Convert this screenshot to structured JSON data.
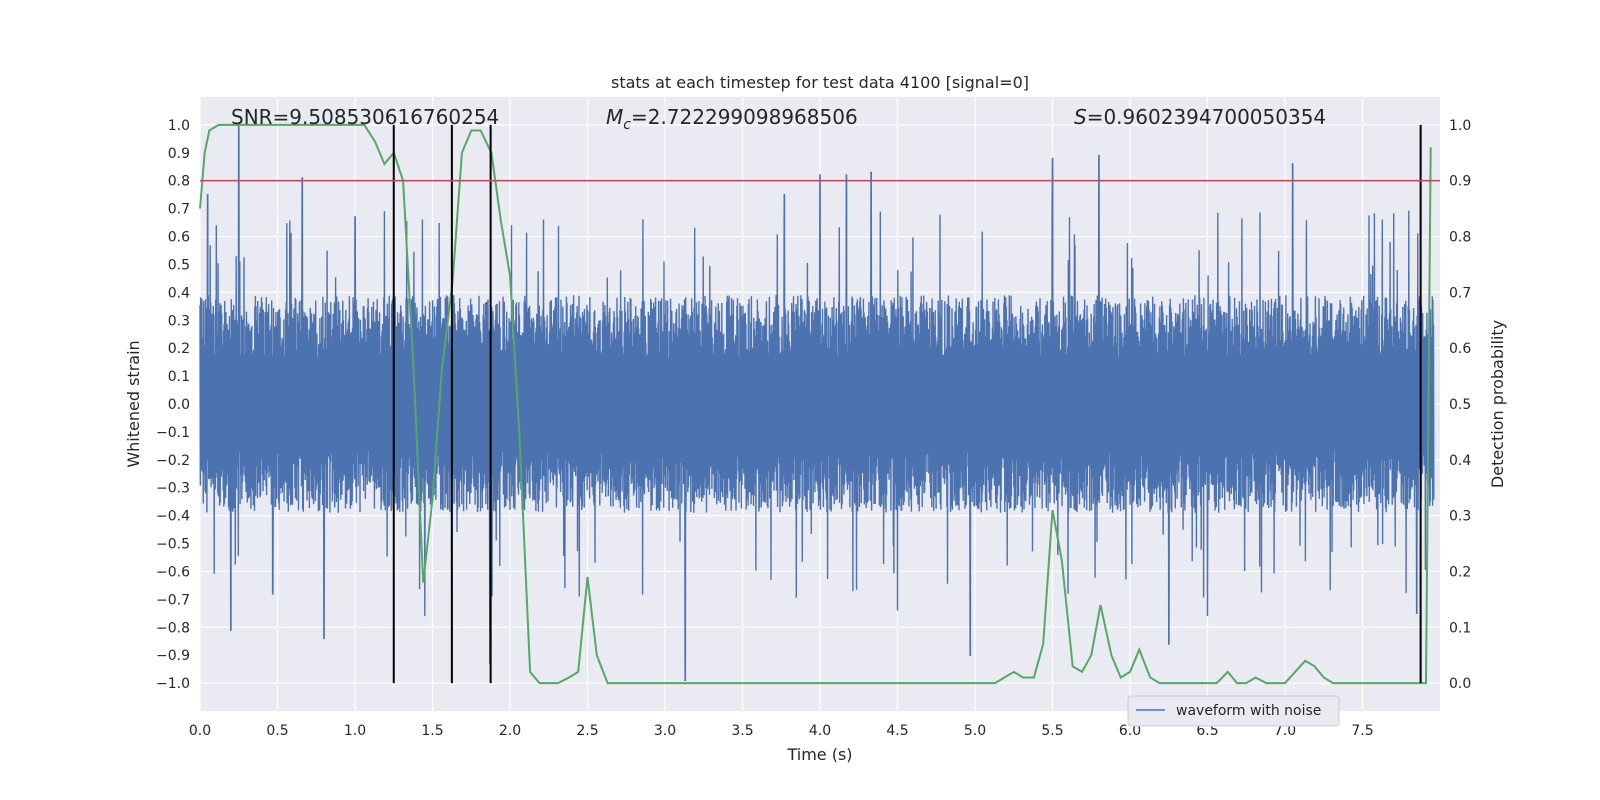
{
  "chart_data": {
    "type": "line",
    "title": "stats at each timestep for test data 4100 [signal=0]",
    "xlabel": "Time (s)",
    "ylabel": "Whitened strain",
    "ylabel_right": "Detection probability",
    "xlim": [
      0.0,
      8.0
    ],
    "ylim": [
      -1.1,
      1.1
    ],
    "ylim_right": [
      -0.05,
      1.05
    ],
    "x_ticks": [
      "0.0",
      "0.5",
      "1.0",
      "1.5",
      "2.0",
      "2.5",
      "3.0",
      "3.5",
      "4.0",
      "4.5",
      "5.0",
      "5.5",
      "6.0",
      "6.5",
      "7.0",
      "7.5"
    ],
    "y_ticks": [
      "1.0",
      "0.9",
      "0.8",
      "0.7",
      "0.6",
      "0.5",
      "0.4",
      "0.3",
      "0.2",
      "0.1",
      "0.0",
      "−0.1",
      "−0.2",
      "−0.3",
      "−0.4",
      "−0.5",
      "−0.6",
      "−0.7",
      "−0.8",
      "−0.9",
      "−1.0"
    ],
    "y_ticks_right": [
      "1.0",
      "0.9",
      "0.8",
      "0.7",
      "0.6",
      "0.5",
      "0.4",
      "0.3",
      "0.2",
      "0.1",
      "0.0"
    ],
    "annotations": {
      "snr": "SNR=9.508530616760254",
      "mc_symbol": "M",
      "mc_sub": "c",
      "mc_value": "=2.722299098968506",
      "s_symbol": "S",
      "s_value": "=0.9602394700050354"
    },
    "threshold": {
      "value": 0.9,
      "axis": "right",
      "color": "#c44e52"
    },
    "vertical_lines": [
      1.25,
      1.625,
      1.875,
      7.875
    ],
    "legend": {
      "label": "waveform with noise",
      "location": "lower right"
    },
    "series": [
      {
        "name": "waveform with noise",
        "axis": "left",
        "color": "#4c72b0",
        "typical_envelope": 0.3,
        "spikes": [
          {
            "t": 0.05,
            "v": 0.75
          },
          {
            "t": 0.2,
            "v": -0.81
          },
          {
            "t": 0.25,
            "v": 1.0
          },
          {
            "t": 0.47,
            "v": -0.68
          },
          {
            "t": 0.66,
            "v": 0.81
          },
          {
            "t": 0.8,
            "v": -0.84
          },
          {
            "t": 1.0,
            "v": 0.67
          },
          {
            "t": 1.45,
            "v": -0.76
          },
          {
            "t": 1.87,
            "v": -0.93
          },
          {
            "t": 3.13,
            "v": -0.99
          },
          {
            "t": 3.77,
            "v": 0.75
          },
          {
            "t": 4.0,
            "v": 0.82
          },
          {
            "t": 4.17,
            "v": 0.82
          },
          {
            "t": 4.33,
            "v": 0.83
          },
          {
            "t": 4.5,
            "v": -0.74
          },
          {
            "t": 4.97,
            "v": -0.9
          },
          {
            "t": 5.5,
            "v": 0.88
          },
          {
            "t": 5.6,
            "v": -0.68
          },
          {
            "t": 5.8,
            "v": 0.89
          },
          {
            "t": 6.25,
            "v": -0.86
          },
          {
            "t": 6.5,
            "v": -0.76
          },
          {
            "t": 7.05,
            "v": 0.86
          },
          {
            "t": 7.85,
            "v": -0.75
          }
        ]
      },
      {
        "name": "detection probability",
        "axis": "right",
        "color": "#55a868",
        "x": [
          0.0,
          0.03,
          0.06,
          0.12,
          0.25,
          0.5,
          0.75,
          1.0,
          1.06,
          1.13,
          1.19,
          1.25,
          1.31,
          1.38,
          1.44,
          1.5,
          1.56,
          1.63,
          1.69,
          1.75,
          1.81,
          1.88,
          1.94,
          2.0,
          2.06,
          2.13,
          2.19,
          2.25,
          2.31,
          2.38,
          2.44,
          2.5,
          2.56,
          2.63,
          2.69,
          2.75,
          2.88,
          3.0,
          3.25,
          3.5,
          3.75,
          3.88,
          4.0,
          4.13,
          4.25,
          4.38,
          4.5,
          4.75,
          5.0,
          5.13,
          5.25,
          5.31,
          5.38,
          5.44,
          5.5,
          5.56,
          5.63,
          5.69,
          5.75,
          5.81,
          5.88,
          5.94,
          6.0,
          6.06,
          6.13,
          6.19,
          6.25,
          6.38,
          6.5,
          6.56,
          6.63,
          6.69,
          6.75,
          6.81,
          6.88,
          6.94,
          7.0,
          7.13,
          7.19,
          7.25,
          7.31,
          7.38,
          7.5,
          7.63,
          7.75,
          7.81,
          7.88,
          7.91,
          7.94
        ],
        "values": [
          0.85,
          0.95,
          0.99,
          1.0,
          1.0,
          1.0,
          1.0,
          1.0,
          1.0,
          0.97,
          0.93,
          0.95,
          0.9,
          0.55,
          0.18,
          0.33,
          0.56,
          0.72,
          0.95,
          0.99,
          0.99,
          0.95,
          0.83,
          0.73,
          0.45,
          0.02,
          0.0,
          0.0,
          0.0,
          0.01,
          0.02,
          0.19,
          0.05,
          0.0,
          0.0,
          0.0,
          0.0,
          0.0,
          0.0,
          0.0,
          0.0,
          0.0,
          0.0,
          0.0,
          0.0,
          0.0,
          0.0,
          0.0,
          0.0,
          0.0,
          0.02,
          0.01,
          0.01,
          0.07,
          0.31,
          0.22,
          0.03,
          0.02,
          0.05,
          0.14,
          0.05,
          0.01,
          0.02,
          0.06,
          0.01,
          0.0,
          0.0,
          0.0,
          0.0,
          0.0,
          0.02,
          0.0,
          0.0,
          0.01,
          0.0,
          0.0,
          0.0,
          0.04,
          0.03,
          0.01,
          0.0,
          0.0,
          0.0,
          0.0,
          0.0,
          0.0,
          0.0,
          0.0,
          0.96
        ]
      }
    ]
  }
}
